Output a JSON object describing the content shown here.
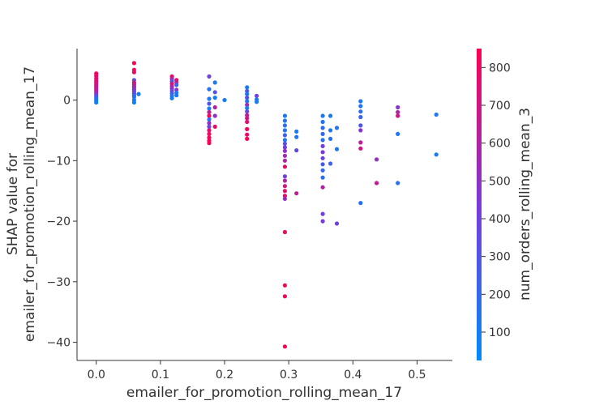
{
  "chart_data": {
    "type": "scatter",
    "title": "",
    "xlabel": "emailer_for_promotion_rolling_mean_17",
    "ylabel_lines": [
      "SHAP value for",
      "emailer_for_promotion_rolling_mean_17"
    ],
    "xlim": [
      -0.03,
      0.555
    ],
    "ylim": [
      -43,
      8.5
    ],
    "x_ticks": [
      0.0,
      0.1,
      0.2,
      0.3,
      0.4,
      0.5
    ],
    "x_tick_labels": [
      "0.0",
      "0.1",
      "0.2",
      "0.3",
      "0.4",
      "0.5"
    ],
    "y_ticks": [
      0,
      -10,
      -20,
      -30,
      -40
    ],
    "y_tick_labels": [
      "0",
      "−10",
      "−20",
      "−30",
      "−40"
    ],
    "grid": false,
    "colorbar": {
      "label": "num_orders_rolling_mean_3",
      "range": [
        25,
        850
      ],
      "ticks": [
        100,
        200,
        300,
        400,
        500,
        600,
        700,
        800
      ],
      "tick_labels": [
        "100",
        "200",
        "300",
        "400",
        "500",
        "600",
        "700",
        "800"
      ],
      "color_low": "#008afb",
      "color_mid": "#7b3ad9",
      "color_high": "#ff0051"
    },
    "points": [
      [
        0.0,
        4.4,
        820
      ],
      [
        0.0,
        4.0,
        790
      ],
      [
        0.0,
        3.6,
        760
      ],
      [
        0.0,
        3.2,
        740
      ],
      [
        0.0,
        2.9,
        720
      ],
      [
        0.0,
        2.6,
        700
      ],
      [
        0.0,
        2.3,
        680
      ],
      [
        0.0,
        2.0,
        660
      ],
      [
        0.0,
        1.7,
        640
      ],
      [
        0.0,
        1.4,
        620
      ],
      [
        0.0,
        1.1,
        500
      ],
      [
        0.0,
        0.8,
        380
      ],
      [
        0.0,
        0.5,
        260
      ],
      [
        0.0,
        0.2,
        160
      ],
      [
        0.0,
        -0.1,
        120
      ],
      [
        0.0,
        -0.4,
        90
      ],
      [
        0.059,
        6.1,
        830
      ],
      [
        0.059,
        5.0,
        800
      ],
      [
        0.059,
        4.6,
        780
      ],
      [
        0.059,
        3.3,
        300
      ],
      [
        0.059,
        2.9,
        700
      ],
      [
        0.059,
        2.6,
        660
      ],
      [
        0.059,
        2.3,
        600
      ],
      [
        0.059,
        2.0,
        520
      ],
      [
        0.059,
        1.7,
        470
      ],
      [
        0.059,
        1.4,
        420
      ],
      [
        0.059,
        1.1,
        340
      ],
      [
        0.059,
        0.8,
        250
      ],
      [
        0.059,
        0.5,
        150
      ],
      [
        0.059,
        0.0,
        90
      ],
      [
        0.059,
        -0.4,
        60
      ],
      [
        0.066,
        1.0,
        120
      ],
      [
        0.118,
        3.9,
        800
      ],
      [
        0.118,
        3.5,
        560
      ],
      [
        0.118,
        3.1,
        320
      ],
      [
        0.118,
        2.7,
        700
      ],
      [
        0.118,
        2.3,
        620
      ],
      [
        0.118,
        1.9,
        500
      ],
      [
        0.118,
        1.5,
        380
      ],
      [
        0.118,
        1.1,
        260
      ],
      [
        0.118,
        0.7,
        160
      ],
      [
        0.118,
        0.3,
        100
      ],
      [
        0.125,
        3.3,
        770
      ],
      [
        0.125,
        2.9,
        640
      ],
      [
        0.125,
        2.5,
        220
      ],
      [
        0.125,
        1.7,
        480
      ],
      [
        0.125,
        1.2,
        110
      ],
      [
        0.125,
        0.8,
        80
      ],
      [
        0.176,
        3.9,
        400
      ],
      [
        0.176,
        1.8,
        150
      ],
      [
        0.176,
        0.2,
        120
      ],
      [
        0.176,
        -0.6,
        300
      ],
      [
        0.176,
        -1.4,
        110
      ],
      [
        0.176,
        -2.0,
        650
      ],
      [
        0.176,
        -2.6,
        820
      ],
      [
        0.176,
        -3.2,
        140
      ],
      [
        0.176,
        -3.8,
        520
      ],
      [
        0.176,
        -4.4,
        400
      ],
      [
        0.176,
        -5.0,
        760
      ],
      [
        0.176,
        -5.6,
        800
      ],
      [
        0.176,
        -6.2,
        820
      ],
      [
        0.176,
        -6.7,
        840
      ],
      [
        0.176,
        -7.1,
        830
      ],
      [
        0.185,
        2.9,
        110
      ],
      [
        0.185,
        1.3,
        300
      ],
      [
        0.185,
        0.4,
        90
      ],
      [
        0.185,
        -1.2,
        600
      ],
      [
        0.185,
        -2.6,
        500
      ],
      [
        0.185,
        -4.4,
        780
      ],
      [
        0.2,
        0.0,
        90
      ],
      [
        0.235,
        2.1,
        120
      ],
      [
        0.235,
        1.5,
        260
      ],
      [
        0.235,
        1.0,
        130
      ],
      [
        0.235,
        0.4,
        300
      ],
      [
        0.235,
        -0.2,
        150
      ],
      [
        0.235,
        -0.8,
        550
      ],
      [
        0.235,
        -1.3,
        100
      ],
      [
        0.235,
        -1.9,
        380
      ],
      [
        0.235,
        -2.5,
        640
      ],
      [
        0.235,
        -3.0,
        700
      ],
      [
        0.235,
        -3.6,
        760
      ],
      [
        0.235,
        -4.8,
        820
      ],
      [
        0.235,
        -5.7,
        790
      ],
      [
        0.235,
        -6.4,
        840
      ],
      [
        0.25,
        0.7,
        400
      ],
      [
        0.25,
        0.1,
        150
      ],
      [
        0.25,
        -0.3,
        120
      ],
      [
        0.294,
        -2.6,
        100
      ],
      [
        0.294,
        -3.4,
        140
      ],
      [
        0.294,
        -4.2,
        160
      ],
      [
        0.294,
        -5.0,
        120
      ],
      [
        0.294,
        -5.8,
        220
      ],
      [
        0.294,
        -6.6,
        110
      ],
      [
        0.294,
        -7.2,
        340
      ],
      [
        0.294,
        -7.8,
        420
      ],
      [
        0.294,
        -8.4,
        520
      ],
      [
        0.294,
        -9.2,
        560
      ],
      [
        0.294,
        -10.0,
        600
      ],
      [
        0.294,
        -11.0,
        780
      ],
      [
        0.294,
        -12.6,
        400
      ],
      [
        0.294,
        -13.3,
        620
      ],
      [
        0.294,
        -14.2,
        700
      ],
      [
        0.294,
        -15.0,
        760
      ],
      [
        0.294,
        -15.8,
        780
      ],
      [
        0.294,
        -16.3,
        520
      ],
      [
        0.294,
        -21.8,
        800
      ],
      [
        0.294,
        -30.6,
        810
      ],
      [
        0.294,
        -32.4,
        820
      ],
      [
        0.294,
        -40.7,
        830
      ],
      [
        0.312,
        -5.2,
        110
      ],
      [
        0.312,
        -6.1,
        140
      ],
      [
        0.312,
        -8.3,
        360
      ],
      [
        0.312,
        -15.4,
        640
      ],
      [
        0.353,
        -2.6,
        110
      ],
      [
        0.353,
        -3.6,
        140
      ],
      [
        0.353,
        -4.6,
        180
      ],
      [
        0.353,
        -5.6,
        200
      ],
      [
        0.353,
        -6.6,
        160
      ],
      [
        0.353,
        -7.6,
        400
      ],
      [
        0.353,
        -8.6,
        440
      ],
      [
        0.353,
        -9.6,
        380
      ],
      [
        0.353,
        -10.6,
        260
      ],
      [
        0.353,
        -11.6,
        200
      ],
      [
        0.353,
        -12.8,
        160
      ],
      [
        0.353,
        -18.8,
        400
      ],
      [
        0.353,
        -20.0,
        420
      ],
      [
        0.353,
        -14.4,
        600
      ],
      [
        0.365,
        -2.6,
        110
      ],
      [
        0.365,
        -5.0,
        120
      ],
      [
        0.365,
        -6.4,
        150
      ],
      [
        0.365,
        -10.5,
        220
      ],
      [
        0.375,
        -4.6,
        120
      ],
      [
        0.375,
        -8.1,
        130
      ],
      [
        0.375,
        -20.4,
        400
      ],
      [
        0.412,
        -0.2,
        110
      ],
      [
        0.412,
        -1.0,
        130
      ],
      [
        0.412,
        -1.9,
        180
      ],
      [
        0.412,
        -2.8,
        220
      ],
      [
        0.412,
        -4.2,
        280
      ],
      [
        0.412,
        -5.0,
        460
      ],
      [
        0.412,
        -7.0,
        640
      ],
      [
        0.412,
        -8.0,
        700
      ],
      [
        0.412,
        -17.0,
        150
      ],
      [
        0.437,
        -9.8,
        500
      ],
      [
        0.437,
        -13.7,
        650
      ],
      [
        0.47,
        -1.2,
        480
      ],
      [
        0.47,
        -2.0,
        600
      ],
      [
        0.47,
        -2.6,
        700
      ],
      [
        0.47,
        -5.6,
        120
      ],
      [
        0.47,
        -13.7,
        160
      ],
      [
        0.53,
        -2.4,
        120
      ],
      [
        0.53,
        -9.0,
        110
      ]
    ]
  }
}
